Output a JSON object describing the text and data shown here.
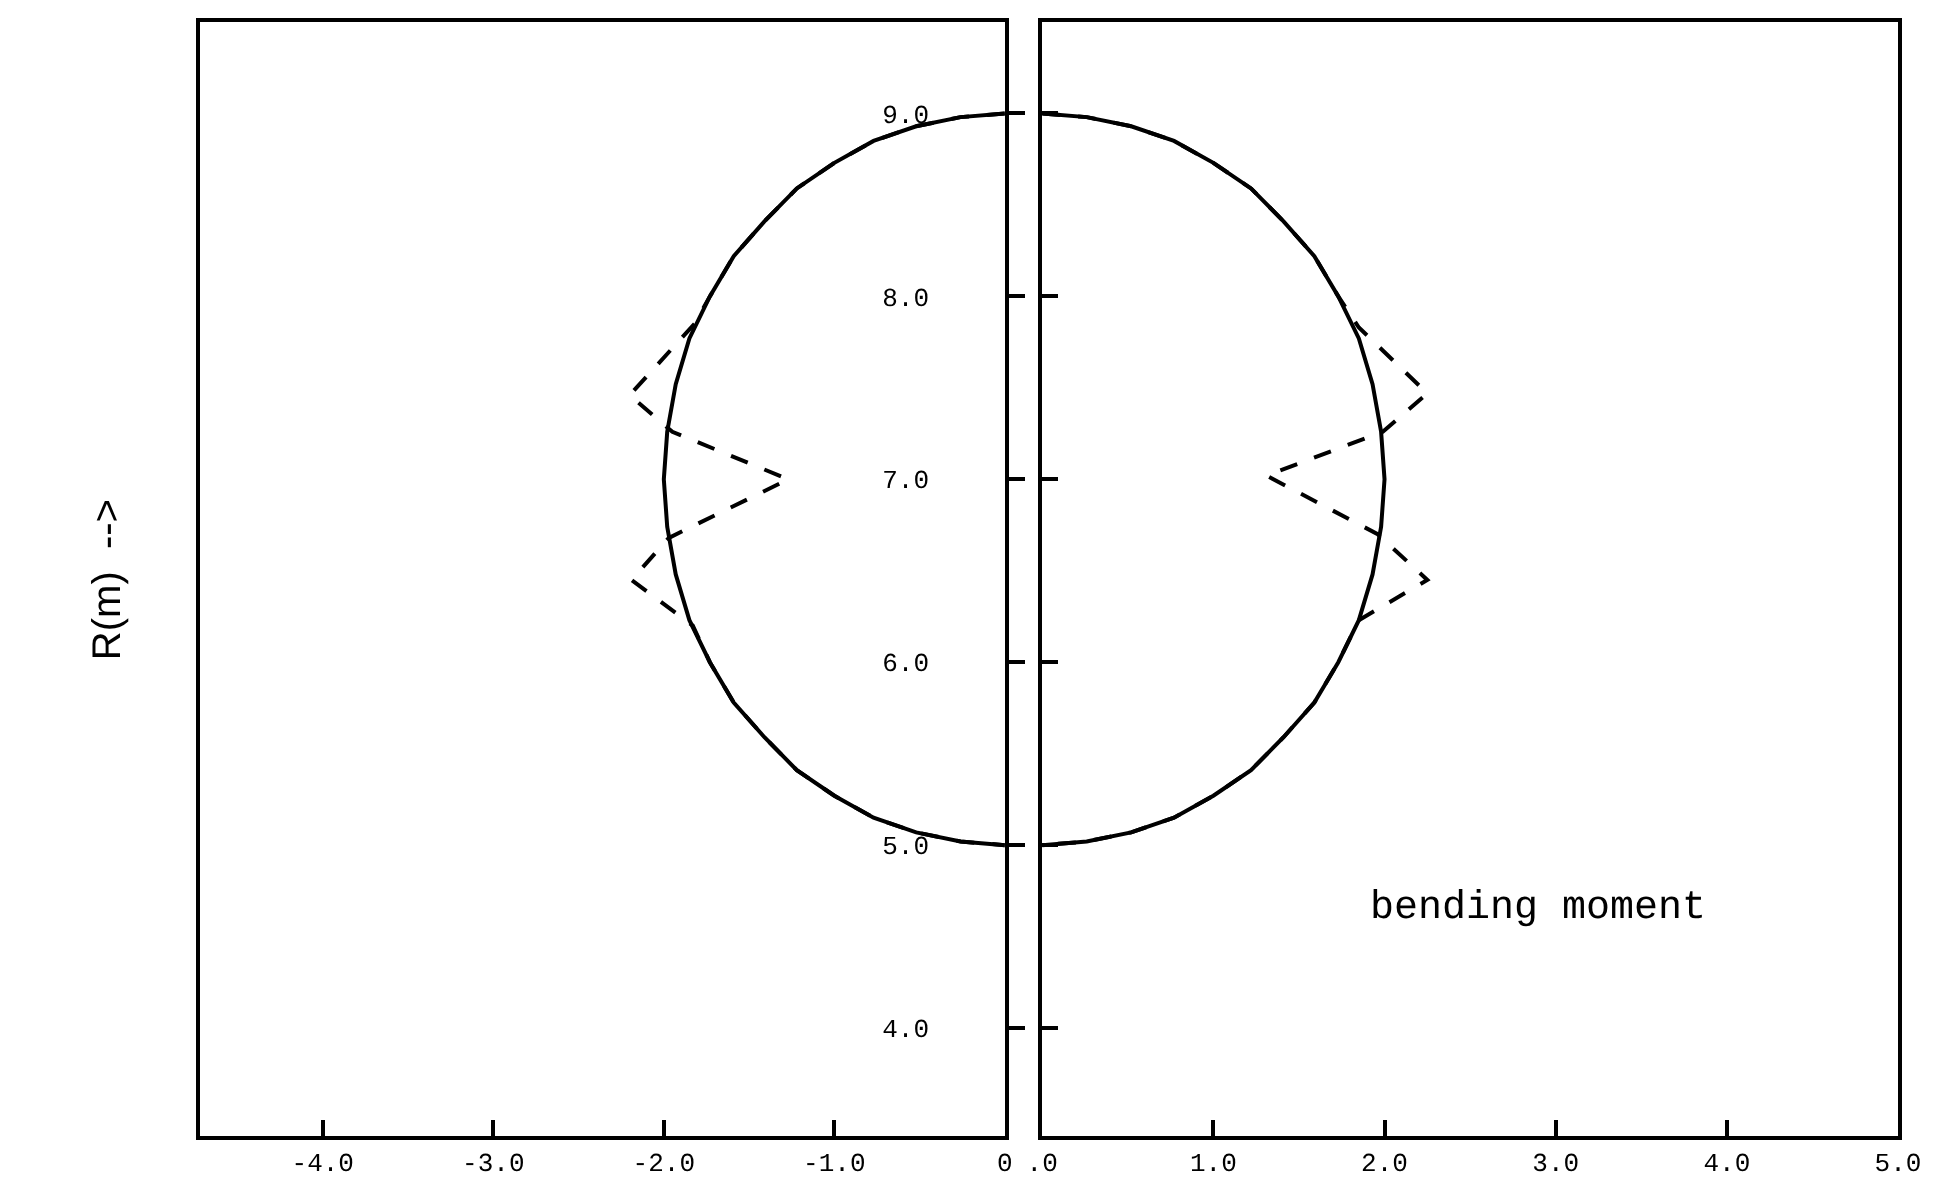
{
  "chart_data": [
    {
      "type": "line",
      "ylabel": "R(m)  -->",
      "tick_labels": "x",
      "xlim": [
        -4.72,
        0
      ],
      "xticks": [
        {
          "value": -4,
          "label": "-4.0"
        },
        {
          "value": -3,
          "label": "-3.0"
        },
        {
          "value": -2,
          "label": "-2.0"
        },
        {
          "value": -1,
          "label": "-1.0"
        },
        {
          "value": 0,
          "label": "0"
        }
      ],
      "ylim": [
        3.41,
        9.5
      ],
      "yticks": [
        {
          "value": 4,
          "label": null
        },
        {
          "value": 5,
          "label": null
        },
        {
          "value": 6,
          "label": null
        },
        {
          "value": 7,
          "label": null
        },
        {
          "value": 8,
          "label": null
        },
        {
          "value": 9,
          "label": null
        }
      ],
      "series": [
        {
          "color": "#000000",
          "line_style": "solid",
          "x": [
            0,
            -0.26,
            -0.52,
            -0.77,
            -1.0,
            -1.22,
            -1.41,
            -1.59,
            -1.73,
            -1.85,
            -1.93,
            -1.98,
            -2.0,
            -1.98,
            -1.93,
            -1.85,
            -1.73,
            -1.59,
            -1.41,
            -1.22,
            -1.0,
            -0.77,
            -0.52,
            -0.26,
            0
          ],
          "values": [
            9,
            8.98,
            8.93,
            8.85,
            8.73,
            8.59,
            8.41,
            8.22,
            8.0,
            7.77,
            7.52,
            7.26,
            7.0,
            6.74,
            6.48,
            6.23,
            6.0,
            5.78,
            5.59,
            5.41,
            5.27,
            5.15,
            5.07,
            5.02,
            5
          ]
        },
        {
          "color": "#000000",
          "line_style": "dashed",
          "x": [
            0,
            -0.26,
            -0.52,
            -0.77,
            -1.0,
            -1.22,
            -1.41,
            -1.59,
            -1.73,
            -1.82,
            -2.2,
            -1.95,
            -1.27,
            -1.97,
            -2.19,
            -1.83,
            -1.73,
            -1.59,
            -1.41,
            -1.22,
            -1.0,
            -0.77,
            -0.52,
            -0.26,
            0
          ],
          "values": [
            9,
            8.98,
            8.93,
            8.85,
            8.73,
            8.59,
            8.41,
            8.22,
            8.0,
            7.85,
            7.46,
            7.26,
            7.0,
            6.68,
            6.45,
            6.2,
            6.0,
            5.78,
            5.59,
            5.41,
            5.27,
            5.15,
            5.07,
            5.02,
            5
          ]
        }
      ]
    },
    {
      "type": "line",
      "annotations": [
        "bending moment"
      ],
      "xlim": [
        0,
        5
      ],
      "xticks": [
        {
          "value": 0,
          "label": ".0"
        },
        {
          "value": 1,
          "label": "1.0"
        },
        {
          "value": 2,
          "label": "2.0"
        },
        {
          "value": 3,
          "label": "3.0"
        },
        {
          "value": 4,
          "label": "4.0"
        },
        {
          "value": 5,
          "label": "5.0"
        }
      ],
      "ylim": [
        3.41,
        9.5
      ],
      "yticks": [
        {
          "value": 4,
          "label": "4.0"
        },
        {
          "value": 5,
          "label": "5.0"
        },
        {
          "value": 6,
          "label": "6.0"
        },
        {
          "value": 7,
          "label": "7.0"
        },
        {
          "value": 8,
          "label": "8.0"
        },
        {
          "value": 9,
          "label": "9.0"
        }
      ],
      "series": [
        {
          "color": "#000000",
          "line_style": "solid",
          "x": [
            0,
            0.26,
            0.52,
            0.77,
            1.0,
            1.22,
            1.41,
            1.59,
            1.73,
            1.85,
            1.93,
            1.98,
            2.0,
            1.98,
            1.93,
            1.85,
            1.73,
            1.59,
            1.41,
            1.22,
            1.0,
            0.77,
            0.52,
            0.26,
            0
          ],
          "values": [
            9,
            8.98,
            8.93,
            8.85,
            8.73,
            8.59,
            8.41,
            8.22,
            8.0,
            7.77,
            7.52,
            7.26,
            7.0,
            6.74,
            6.48,
            6.23,
            6.0,
            5.78,
            5.59,
            5.41,
            5.27,
            5.15,
            5.07,
            5.02,
            5
          ]
        },
        {
          "color": "#000000",
          "line_style": "dashed",
          "x": [
            0,
            0.26,
            0.52,
            0.77,
            1.0,
            1.22,
            1.41,
            1.59,
            1.73,
            1.85,
            2.25,
            1.99,
            1.31,
            1.96,
            2.25,
            1.85,
            1.73,
            1.59,
            1.41,
            1.22,
            1.0,
            0.77,
            0.52,
            0.26,
            0
          ],
          "values": [
            9,
            8.98,
            8.93,
            8.85,
            8.73,
            8.59,
            8.41,
            8.22,
            8.0,
            7.83,
            7.47,
            7.26,
            7.02,
            6.7,
            6.45,
            6.23,
            6.0,
            5.78,
            5.59,
            5.41,
            5.27,
            5.15,
            5.07,
            5.02,
            5
          ]
        }
      ]
    }
  ]
}
